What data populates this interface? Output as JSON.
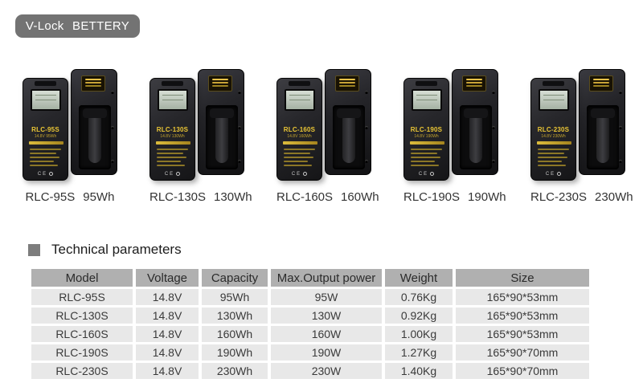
{
  "header": {
    "badge_label": "V-Lock BETTERY"
  },
  "colors": {
    "badge_bg": "#737373",
    "table_header_bg": "#b0b0b0",
    "table_row_bg": "#e8e8e8",
    "battery_accent_yellow": "#ecc735",
    "section_bullet": "#7d7d7d"
  },
  "battery_common": {
    "ce_label": "CE"
  },
  "products": [
    {
      "model": "RLC-95S",
      "capacity": "95Wh",
      "sub_label": "14.8V 95Wh"
    },
    {
      "model": "RLC-130S",
      "capacity": "130Wh",
      "sub_label": "14.8V 130Wh"
    },
    {
      "model": "RLC-160S",
      "capacity": "160Wh",
      "sub_label": "14.8V 160Wh"
    },
    {
      "model": "RLC-190S",
      "capacity": "190Wh",
      "sub_label": "14.8V 190Wh"
    },
    {
      "model": "RLC-230S",
      "capacity": "230Wh",
      "sub_label": "14.8V 230Wh"
    }
  ],
  "section": {
    "title": "Technical parameters"
  },
  "table": {
    "columns": [
      "Model",
      "Voltage",
      "Capacity",
      "Max.Output power",
      "Weight",
      "Size"
    ],
    "rows": [
      [
        "RLC-95S",
        "14.8V",
        "95Wh",
        "95W",
        "0.76Kg",
        "165*90*53mm"
      ],
      [
        "RLC-130S",
        "14.8V",
        "130Wh",
        "130W",
        "0.92Kg",
        "165*90*53mm"
      ],
      [
        "RLC-160S",
        "14.8V",
        "160Wh",
        "160W",
        "1.00Kg",
        "165*90*53mm"
      ],
      [
        "RLC-190S",
        "14.8V",
        "190Wh",
        "190W",
        "1.27Kg",
        "165*90*70mm"
      ],
      [
        "RLC-230S",
        "14.8V",
        "230Wh",
        "230W",
        "1.40Kg",
        "165*90*70mm"
      ]
    ]
  }
}
